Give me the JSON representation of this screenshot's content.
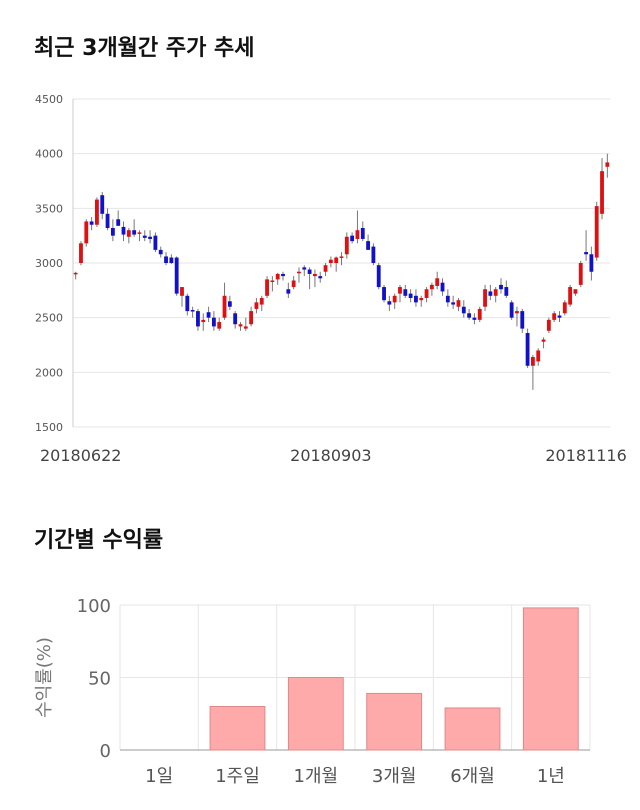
{
  "sections": {
    "price_title": "최근 3개월간 주가 추세",
    "returns_title": "기간별 수익률"
  },
  "colors": {
    "up": "#dd1111",
    "down": "#1111cc",
    "bar": "#ffaaaa",
    "bar_border": "#e08888",
    "grid": "#e6e6e6"
  },
  "chart_data": [
    {
      "type": "candlestick",
      "title": "최근 3개월간 주가 추세",
      "ylim": [
        1500,
        4500
      ],
      "y_ticks": [
        1500,
        2000,
        2500,
        3000,
        3500,
        4000,
        4500
      ],
      "x_tick_labels": [
        {
          "index": 0,
          "label": "20180622"
        },
        {
          "index": 48,
          "label": "20180903"
        },
        {
          "index": 96,
          "label": "20181116"
        }
      ],
      "grid": true,
      "candles": [
        [
          2900,
          2920,
          2850,
          2910
        ],
        [
          3000,
          3200,
          2980,
          3180
        ],
        [
          3180,
          3400,
          3150,
          3380
        ],
        [
          3380,
          3420,
          3300,
          3350
        ],
        [
          3350,
          3600,
          3330,
          3580
        ],
        [
          3620,
          3650,
          3400,
          3450
        ],
        [
          3450,
          3500,
          3300,
          3320
        ],
        [
          3320,
          3400,
          3200,
          3250
        ],
        [
          3400,
          3480,
          3350,
          3340
        ],
        [
          3330,
          3380,
          3200,
          3260
        ],
        [
          3240,
          3320,
          3180,
          3300
        ],
        [
          3300,
          3400,
          3240,
          3260
        ],
        [
          3270,
          3300,
          3200,
          3280
        ],
        [
          3250,
          3300,
          3200,
          3230
        ],
        [
          3240,
          3300,
          3180,
          3220
        ],
        [
          3250,
          3280,
          3100,
          3120
        ],
        [
          3120,
          3150,
          3050,
          3080
        ],
        [
          3060,
          3100,
          2980,
          3000
        ],
        [
          3050,
          3080,
          2990,
          3000
        ],
        [
          3050,
          3060,
          2700,
          2720
        ],
        [
          2700,
          2780,
          2600,
          2780
        ],
        [
          2700,
          2720,
          2520,
          2560
        ],
        [
          2570,
          2600,
          2500,
          2560
        ],
        [
          2560,
          2580,
          2380,
          2420
        ],
        [
          2460,
          2540,
          2380,
          2480
        ],
        [
          2550,
          2600,
          2460,
          2500
        ],
        [
          2500,
          2560,
          2380,
          2420
        ],
        [
          2400,
          2500,
          2380,
          2460
        ],
        [
          2500,
          2820,
          2480,
          2700
        ],
        [
          2650,
          2700,
          2570,
          2600
        ],
        [
          2540,
          2560,
          2400,
          2440
        ],
        [
          2420,
          2460,
          2380,
          2440
        ],
        [
          2400,
          2500,
          2380,
          2420
        ],
        [
          2440,
          2600,
          2420,
          2560
        ],
        [
          2580,
          2680,
          2540,
          2640
        ],
        [
          2620,
          2700,
          2560,
          2680
        ],
        [
          2700,
          2880,
          2680,
          2850
        ],
        [
          2830,
          2880,
          2740,
          2840
        ],
        [
          2850,
          2910,
          2800,
          2900
        ],
        [
          2900,
          2920,
          2840,
          2880
        ],
        [
          2760,
          2820,
          2680,
          2720
        ],
        [
          2780,
          2880,
          2760,
          2840
        ],
        [
          2910,
          2960,
          2820,
          2920
        ],
        [
          2960,
          2980,
          2880,
          2940
        ],
        [
          2940,
          2960,
          2760,
          2900
        ],
        [
          2880,
          2940,
          2780,
          2900
        ],
        [
          2880,
          2920,
          2820,
          2860
        ],
        [
          2920,
          3000,
          2880,
          2980
        ],
        [
          3000,
          3060,
          2960,
          3030
        ],
        [
          3000,
          3060,
          2920,
          3050
        ],
        [
          3050,
          3100,
          2980,
          3060
        ],
        [
          3080,
          3280,
          3040,
          3240
        ],
        [
          3250,
          3280,
          3180,
          3200
        ],
        [
          3220,
          3480,
          3180,
          3300
        ],
        [
          3320,
          3380,
          3200,
          3220
        ],
        [
          3200,
          3260,
          3120,
          3120
        ],
        [
          3150,
          3180,
          2980,
          3000
        ],
        [
          2980,
          3000,
          2760,
          2780
        ],
        [
          2780,
          2800,
          2640,
          2660
        ],
        [
          2650,
          2700,
          2560,
          2620
        ],
        [
          2640,
          2720,
          2580,
          2700
        ],
        [
          2720,
          2800,
          2640,
          2780
        ],
        [
          2760,
          2800,
          2680,
          2700
        ],
        [
          2720,
          2760,
          2640,
          2680
        ],
        [
          2700,
          2760,
          2600,
          2640
        ],
        [
          2660,
          2700,
          2600,
          2680
        ],
        [
          2680,
          2780,
          2640,
          2760
        ],
        [
          2760,
          2820,
          2700,
          2800
        ],
        [
          2790,
          2920,
          2760,
          2860
        ],
        [
          2820,
          2860,
          2700,
          2740
        ],
        [
          2700,
          2760,
          2600,
          2640
        ],
        [
          2640,
          2700,
          2580,
          2620
        ],
        [
          2600,
          2680,
          2560,
          2660
        ],
        [
          2600,
          2660,
          2500,
          2540
        ],
        [
          2540,
          2580,
          2480,
          2500
        ],
        [
          2500,
          2540,
          2440,
          2480
        ],
        [
          2480,
          2600,
          2460,
          2580
        ],
        [
          2600,
          2800,
          2560,
          2760
        ],
        [
          2740,
          2800,
          2660,
          2700
        ],
        [
          2700,
          2780,
          2640,
          2760
        ],
        [
          2800,
          2860,
          2720,
          2760
        ],
        [
          2780,
          2840,
          2680,
          2700
        ],
        [
          2640,
          2660,
          2480,
          2500
        ],
        [
          2540,
          2600,
          2420,
          2560
        ],
        [
          2560,
          2580,
          2360,
          2400
        ],
        [
          2360,
          2400,
          2040,
          2060
        ],
        [
          2060,
          2160,
          1840,
          2140
        ],
        [
          2100,
          2220,
          2060,
          2200
        ],
        [
          2280,
          2320,
          2220,
          2300
        ],
        [
          2380,
          2500,
          2360,
          2480
        ],
        [
          2480,
          2560,
          2460,
          2540
        ],
        [
          2520,
          2560,
          2460,
          2500
        ],
        [
          2540,
          2660,
          2520,
          2640
        ],
        [
          2620,
          2800,
          2600,
          2780
        ],
        [
          2720,
          2760,
          2700,
          2760
        ],
        [
          2800,
          3020,
          2780,
          3000
        ],
        [
          3100,
          3300,
          3020,
          3080
        ],
        [
          3080,
          3150,
          2840,
          2920
        ],
        [
          3050,
          3560,
          3020,
          3520
        ],
        [
          3450,
          3960,
          3400,
          3840
        ],
        [
          3880,
          4000,
          3780,
          3920
        ]
      ]
    },
    {
      "type": "bar",
      "categories": [
        "1일",
        "1주일",
        "1개월",
        "3개월",
        "6개월",
        "1년"
      ],
      "values": [
        0,
        30,
        50,
        39,
        29,
        98
      ],
      "ylabel": "수익률(%)",
      "ylim": [
        0,
        100
      ],
      "y_ticks": [
        0,
        50,
        100
      ],
      "grid": true
    }
  ]
}
